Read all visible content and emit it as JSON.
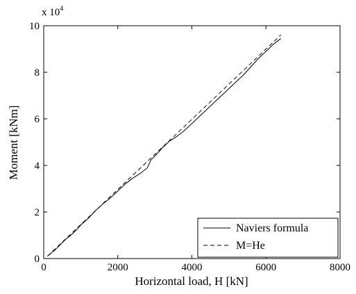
{
  "chart_data": {
    "type": "line",
    "xlabel": "Horizontal load, H [kN]",
    "ylabel": "Moment [kNm]",
    "xlim": [
      0,
      8000
    ],
    "ylim": [
      0,
      100000
    ],
    "xticks": [
      0,
      2000,
      4000,
      6000,
      8000
    ],
    "yticks": [
      0,
      2,
      4,
      6,
      8,
      10
    ],
    "xtick_labels": [
      "0",
      "2000",
      "4000",
      "6000",
      "8000"
    ],
    "ytick_labels": [
      "0",
      "2",
      "4",
      "6",
      "8",
      "10"
    ],
    "y_multiplier_base": "x 10",
    "y_multiplier_exp": "4",
    "grid": false,
    "legend_position": "bottom-right",
    "series": [
      {
        "name": "Naviers formula",
        "line_style": "solid",
        "color": "#000000",
        "x": [
          100,
          200,
          300,
          400,
          500,
          600,
          700,
          800,
          900,
          1000,
          1200,
          1400,
          1600,
          1800,
          2000,
          2200,
          2400,
          2600,
          2800,
          2900,
          3000,
          3200,
          3400,
          3600,
          3800,
          4000,
          4200,
          4400,
          4600,
          4800,
          5000,
          5200,
          5400,
          5600,
          5800,
          6000,
          6200,
          6400
        ],
        "y": [
          1000,
          2300,
          3600,
          5200,
          6800,
          8400,
          9600,
          11000,
          12600,
          14400,
          17200,
          20600,
          23500,
          26000,
          29000,
          32000,
          34500,
          36500,
          39000,
          42500,
          44000,
          47500,
          50500,
          52500,
          55000,
          58000,
          61000,
          64000,
          67000,
          70000,
          73000,
          76000,
          79000,
          82500,
          86000,
          89000,
          92000,
          94500
        ]
      },
      {
        "name": "M=He",
        "line_style": "dashed",
        "color": "#000000",
        "x": [
          100,
          6400
        ],
        "y": [
          1000,
          96000
        ]
      }
    ]
  }
}
